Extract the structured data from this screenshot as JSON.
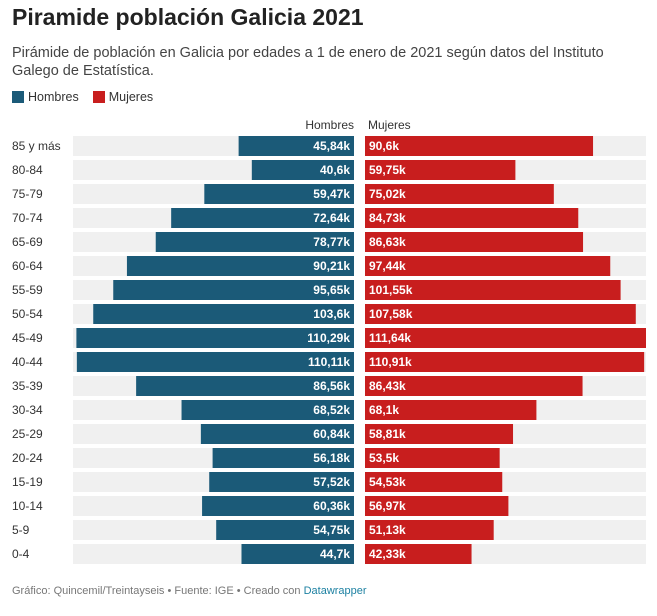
{
  "title": "Piramide población Galicia 2021",
  "subtitle": "Pirámide de población en Galicia por edades a 1 de enero de 2021 según datos del Instituto Galego de Estatística.",
  "colors": {
    "hombres": "#1b5a78",
    "mujeres": "#c81e1e",
    "track": "#f0f0f0"
  },
  "legend": [
    {
      "label": "Hombres",
      "color": "#1b5a78"
    },
    {
      "label": "Mujeres",
      "color": "#c81e1e"
    }
  ],
  "chart_data": {
    "type": "bar",
    "orientation": "horizontal-diverging",
    "categories": [
      "85 y más",
      "80-84",
      "75-79",
      "70-74",
      "65-69",
      "60-64",
      "55-59",
      "50-54",
      "45-49",
      "40-44",
      "35-39",
      "30-34",
      "25-29",
      "20-24",
      "15-19",
      "10-14",
      "5-9",
      "0-4"
    ],
    "series": [
      {
        "name": "Hombres",
        "values": [
          45.84,
          40.6,
          59.47,
          72.64,
          78.77,
          90.21,
          95.65,
          103.6,
          110.29,
          110.11,
          86.56,
          68.52,
          60.84,
          56.18,
          57.52,
          60.36,
          54.75,
          44.7
        ],
        "labels": [
          "45,84k",
          "40,6k",
          "59,47k",
          "72,64k",
          "78,77k",
          "90,21k",
          "95,65k",
          "103,6k",
          "110,29k",
          "110,11k",
          "86,56k",
          "68,52k",
          "60,84k",
          "56,18k",
          "57,52k",
          "60,36k",
          "54,75k",
          "44,7k"
        ]
      },
      {
        "name": "Mujeres",
        "values": [
          90.6,
          59.75,
          75.02,
          84.73,
          86.63,
          97.44,
          101.55,
          107.58,
          111.64,
          110.91,
          86.43,
          68.1,
          58.81,
          53.5,
          54.53,
          56.97,
          51.13,
          42.33
        ],
        "labels": [
          "90,6k",
          "59,75k",
          "75,02k",
          "84,73k",
          "86,63k",
          "97,44k",
          "101,55k",
          "107,58k",
          "111,64k",
          "110,91k",
          "86,43k",
          "68,1k",
          "58,81k",
          "53,5k",
          "54,53k",
          "56,97k",
          "51,13k",
          "42,33k"
        ]
      }
    ],
    "max_value": 111.64
  },
  "footer": {
    "text": "Gráfico: Quincemil/Treintayseis • Fuente: IGE • Creado con ",
    "link": "Datawrapper"
  }
}
